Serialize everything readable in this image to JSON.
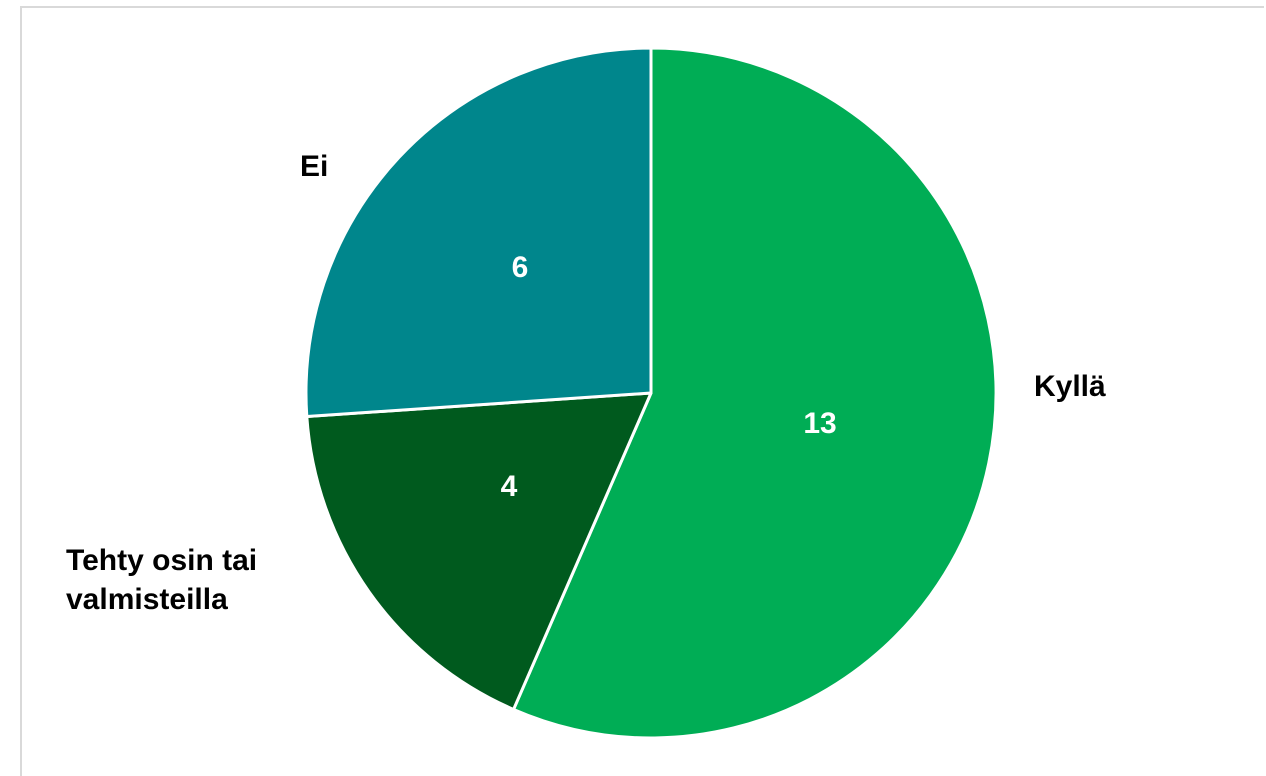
{
  "chart_data": {
    "type": "pie",
    "slices": [
      {
        "label": "Kyllä",
        "value": 13,
        "color": "#00AD55"
      },
      {
        "label": "Tehty osin tai valmisteilla",
        "label_lines": [
          "Tehty osin tai",
          "valmisteilla"
        ],
        "value": 4,
        "color": "#005A1E"
      },
      {
        "label": "Ei",
        "value": 6,
        "color": "#00868C"
      }
    ],
    "legend": "none",
    "data_labels": "inside",
    "category_labels": "outside"
  }
}
